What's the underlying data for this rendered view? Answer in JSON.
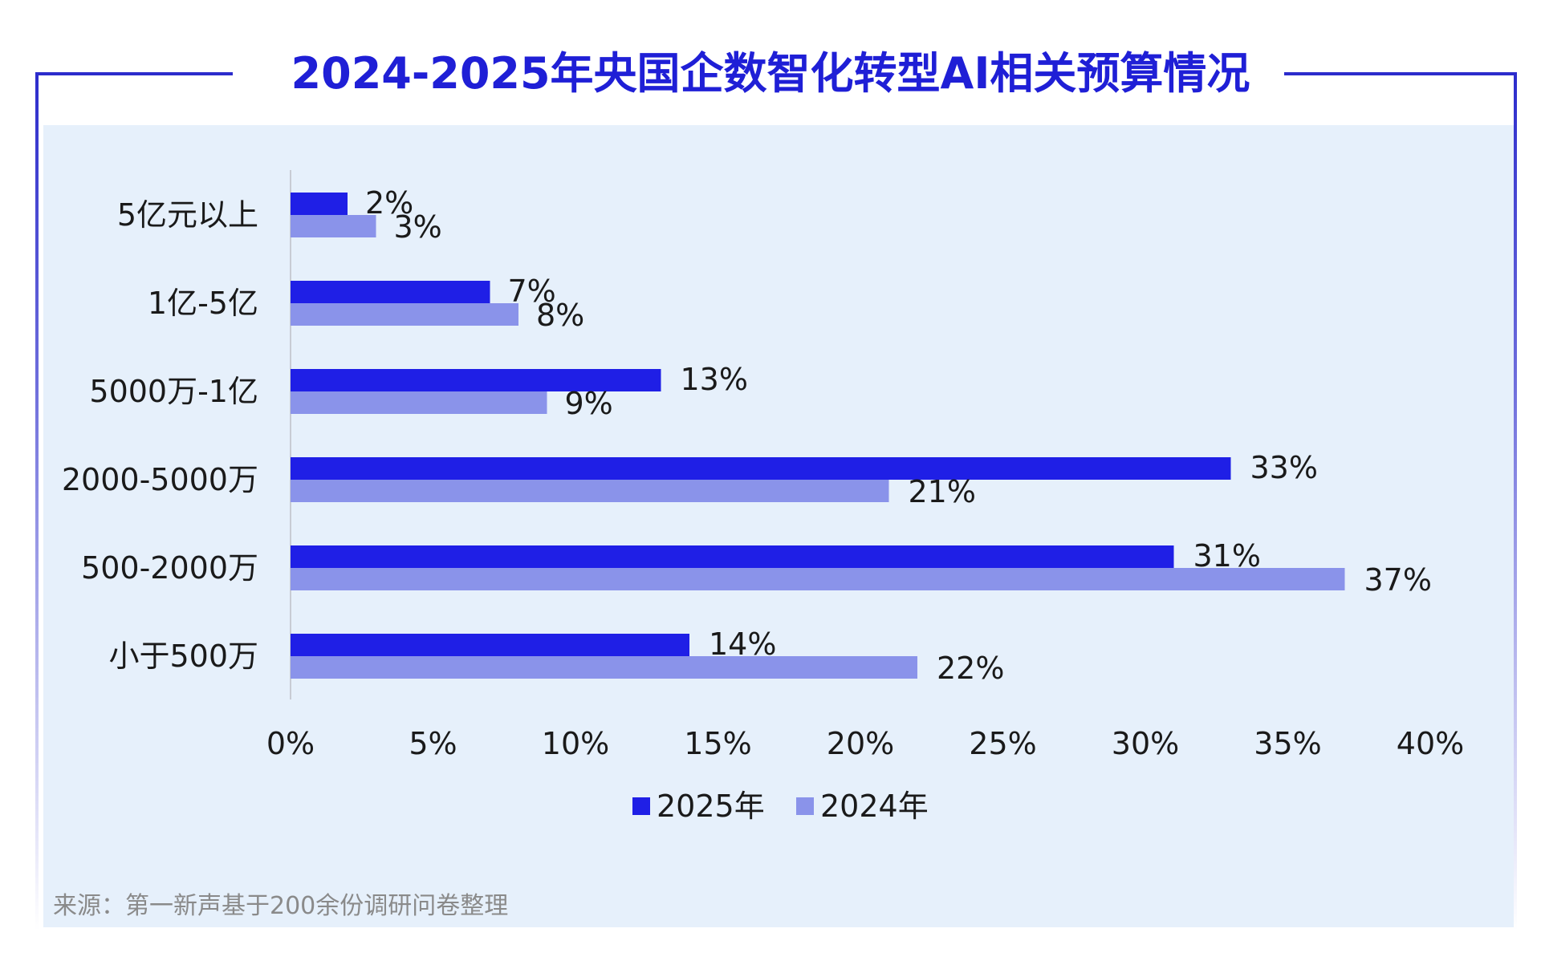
{
  "title": "2024-2025年央国企数智化转型AI相关预算情况",
  "source": "来源：第一新声基于200余份调研问卷整理",
  "colors": {
    "accent": "#1f1fd6",
    "series_2025": "#1f1fe6",
    "series_2024": "#8a93ea",
    "panel_bg": "#e6f0fb",
    "frame": "#2c2ccc"
  },
  "chart_data": {
    "type": "bar",
    "orientation": "horizontal",
    "title": "2024-2025年央国企数智化转型AI相关预算情况",
    "categories": [
      "5亿元以上",
      "1亿-5亿",
      "5000万-1亿",
      "2000-5000万",
      "500-2000万",
      "小于500万"
    ],
    "series": [
      {
        "name": "2025年",
        "values": [
          2,
          7,
          13,
          33,
          31,
          14
        ],
        "labels": [
          "2%",
          "7%",
          "13%",
          "33%",
          "31%",
          "14%"
        ]
      },
      {
        "name": "2024年",
        "values": [
          3,
          8,
          9,
          21,
          37,
          22
        ],
        "labels": [
          "3%",
          "8%",
          "9%",
          "21%",
          "37%",
          "22%"
        ]
      }
    ],
    "xlim": [
      0,
      40
    ],
    "xticks": [
      0,
      5,
      10,
      15,
      20,
      25,
      30,
      35,
      40
    ],
    "xtick_labels": [
      "0%",
      "5%",
      "10%",
      "15%",
      "20%",
      "25%",
      "30%",
      "35%",
      "40%"
    ],
    "grid": false,
    "legend_position": "bottom-center",
    "xlabel": "",
    "ylabel": ""
  }
}
